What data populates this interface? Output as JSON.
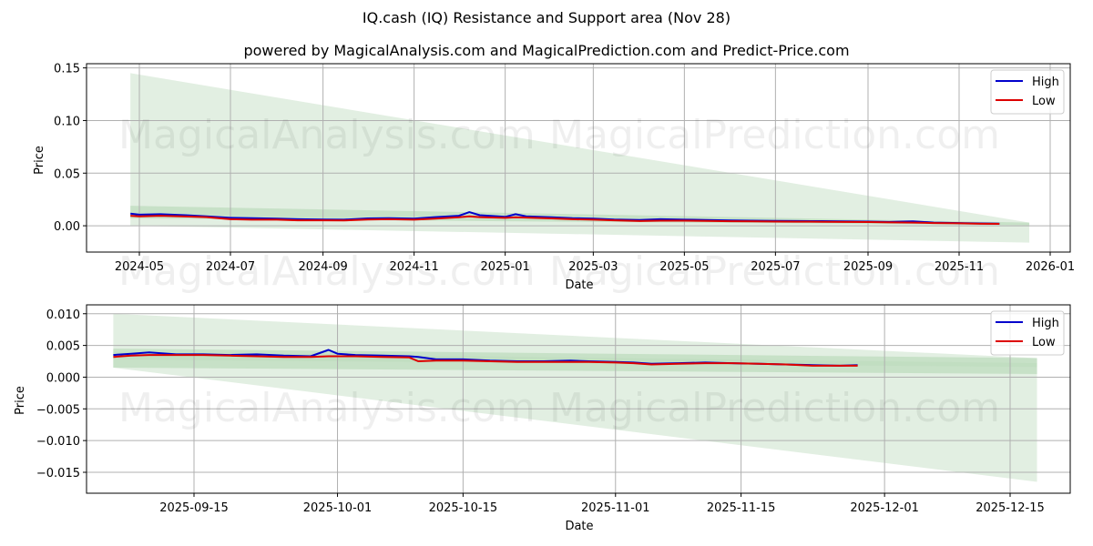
{
  "header": {
    "title": "IQ.cash (IQ) Resistance and Support area (Nov 28)",
    "subtitle": "powered by MagicalAnalysis.com and MagicalPrediction.com and Predict-Price.com"
  },
  "watermarks": [
    "MagicalAnalysis.com",
    "MagicalPrediction.com"
  ],
  "colors": {
    "high": "#0000cc",
    "low": "#dd0000",
    "band_light": "#d8ead8",
    "band_mid": "#bcdcbc",
    "grid": "#b0b0b0"
  },
  "chart_data": [
    {
      "type": "line",
      "title": "",
      "xlabel": "Date",
      "ylabel": "Price",
      "ylim": [
        -0.025,
        0.154
      ],
      "grid": true,
      "legend_position": "upper right",
      "legend": [
        "High",
        "Low"
      ],
      "x_tick_labels": [
        "2024-05",
        "2024-07",
        "2024-09",
        "2024-11",
        "2025-01",
        "2025-03",
        "2025-05",
        "2025-07",
        "2025-09",
        "2025-11",
        "2026-01"
      ],
      "y_tick_labels": [
        "0.00",
        "0.05",
        "0.10",
        "0.15"
      ],
      "y_ticks": [
        0.0,
        0.05,
        0.1,
        0.15
      ],
      "x": [
        "2024-04-25",
        "2024-05-01",
        "2024-05-15",
        "2024-06-01",
        "2024-06-15",
        "2024-07-01",
        "2024-07-15",
        "2024-08-01",
        "2024-08-15",
        "2024-09-01",
        "2024-09-15",
        "2024-10-01",
        "2024-10-15",
        "2024-11-01",
        "2024-11-15",
        "2024-12-01",
        "2024-12-08",
        "2024-12-15",
        "2025-01-01",
        "2025-01-08",
        "2025-01-15",
        "2025-02-01",
        "2025-02-15",
        "2025-03-01",
        "2025-03-15",
        "2025-04-01",
        "2025-04-15",
        "2025-05-01",
        "2025-05-15",
        "2025-06-01",
        "2025-06-15",
        "2025-07-01",
        "2025-07-15",
        "2025-08-01",
        "2025-08-15",
        "2025-09-01",
        "2025-09-15",
        "2025-10-01",
        "2025-10-15",
        "2025-11-01",
        "2025-11-15",
        "2025-11-28"
      ],
      "series": [
        {
          "name": "High",
          "values": [
            0.0115,
            0.0105,
            0.011,
            0.01,
            0.009,
            0.0075,
            0.0072,
            0.0068,
            0.0062,
            0.006,
            0.0058,
            0.007,
            0.0072,
            0.0068,
            0.0082,
            0.0095,
            0.013,
            0.01,
            0.0085,
            0.011,
            0.009,
            0.008,
            0.0072,
            0.0068,
            0.006,
            0.0055,
            0.0062,
            0.0058,
            0.0055,
            0.005,
            0.0048,
            0.0046,
            0.0045,
            0.0044,
            0.0042,
            0.004,
            0.0036,
            0.0042,
            0.003,
            0.0026,
            0.0022,
            0.002
          ]
        },
        {
          "name": "Low",
          "values": [
            0.0095,
            0.009,
            0.0095,
            0.0088,
            0.0082,
            0.0062,
            0.0058,
            0.0058,
            0.0052,
            0.0052,
            0.005,
            0.006,
            0.0062,
            0.0058,
            0.0068,
            0.008,
            0.009,
            0.0082,
            0.0075,
            0.008,
            0.0078,
            0.007,
            0.0062,
            0.0058,
            0.0052,
            0.0045,
            0.0048,
            0.0048,
            0.0046,
            0.0043,
            0.0041,
            0.004,
            0.0039,
            0.0038,
            0.0036,
            0.0035,
            0.0032,
            0.003,
            0.0026,
            0.0023,
            0.0019,
            0.0018
          ]
        }
      ],
      "bands": {
        "start": "2024-04-25",
        "end": "2025-12-18",
        "outer": {
          "upper": [
            0.145,
            0.003
          ],
          "lower": [
            0.0,
            -0.016
          ]
        },
        "inner": {
          "upper": [
            0.019,
            0.003
          ],
          "lower": [
            0.007,
            0.0005
          ]
        }
      }
    },
    {
      "type": "line",
      "title": "",
      "xlabel": "Date",
      "ylabel": "Price",
      "ylim": [
        -0.0183,
        0.0114
      ],
      "grid": true,
      "legend_position": "upper right",
      "legend": [
        "High",
        "Low"
      ],
      "x_tick_labels": [
        "2025-09-15",
        "2025-10-01",
        "2025-10-15",
        "2025-11-01",
        "2025-11-15",
        "2025-12-01",
        "2025-12-15"
      ],
      "y_tick_labels": [
        "−0.015",
        "−0.010",
        "−0.005",
        "0.000",
        "0.005",
        "0.010"
      ],
      "y_ticks": [
        -0.015,
        -0.01,
        -0.005,
        0.0,
        0.005,
        0.01
      ],
      "x": [
        "2025-09-06",
        "2025-09-08",
        "2025-09-10",
        "2025-09-13",
        "2025-09-16",
        "2025-09-19",
        "2025-09-22",
        "2025-09-25",
        "2025-09-28",
        "2025-09-30",
        "2025-10-01",
        "2025-10-03",
        "2025-10-06",
        "2025-10-09",
        "2025-10-10",
        "2025-10-12",
        "2025-10-15",
        "2025-10-18",
        "2025-10-21",
        "2025-10-24",
        "2025-10-27",
        "2025-10-29",
        "2025-11-01",
        "2025-11-03",
        "2025-11-05",
        "2025-11-08",
        "2025-11-11",
        "2025-11-14",
        "2025-11-17",
        "2025-11-20",
        "2025-11-23",
        "2025-11-26",
        "2025-11-28"
      ],
      "series": [
        {
          "name": "High",
          "values": [
            0.0035,
            0.0037,
            0.0039,
            0.0036,
            0.0036,
            0.0035,
            0.0036,
            0.0034,
            0.0033,
            0.0043,
            0.0037,
            0.0035,
            0.0034,
            0.0033,
            0.0032,
            0.0028,
            0.0028,
            0.0026,
            0.0025,
            0.0025,
            0.0026,
            0.0025,
            0.0024,
            0.0023,
            0.0021,
            0.0022,
            0.0023,
            0.0022,
            0.0021,
            0.002,
            0.0019,
            0.0018,
            0.0019
          ]
        },
        {
          "name": "Low",
          "values": [
            0.0032,
            0.0034,
            0.0035,
            0.0035,
            0.0035,
            0.0034,
            0.0033,
            0.0032,
            0.0032,
            0.0033,
            0.0033,
            0.0033,
            0.0032,
            0.0031,
            0.0025,
            0.0026,
            0.0026,
            0.0025,
            0.0024,
            0.0024,
            0.0024,
            0.0024,
            0.0023,
            0.0022,
            0.002,
            0.0021,
            0.0022,
            0.0022,
            0.0021,
            0.002,
            0.0018,
            0.0018,
            0.0018
          ]
        }
      ],
      "bands": {
        "start": "2025-09-06",
        "end": "2025-12-18",
        "outer": {
          "upper": [
            0.01,
            0.003
          ],
          "lower": [
            0.0015,
            -0.0165
          ]
        },
        "inner": {
          "upper": [
            0.0045,
            0.003
          ],
          "lower": [
            0.0015,
            0.0005
          ]
        },
        "core": {
          "upper": [
            0.004,
            0.0022
          ],
          "lower": [
            0.0028,
            0.0016
          ]
        }
      }
    }
  ]
}
